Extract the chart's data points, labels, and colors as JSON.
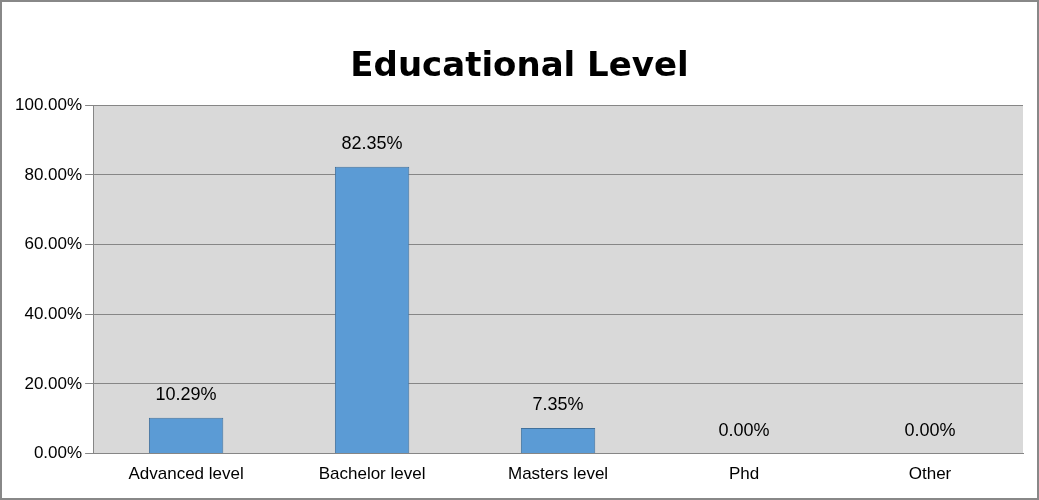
{
  "chart_data": {
    "type": "bar",
    "title": "Educational  Level",
    "categories": [
      "Advanced level",
      "Bachelor level",
      "Masters level",
      "Phd",
      "Other"
    ],
    "values": [
      10.29,
      82.35,
      7.35,
      0,
      0
    ],
    "value_labels": [
      "10.29%",
      "82.35%",
      "7.35%",
      "0.00%",
      "0.00%"
    ],
    "color": "#5b9bd5",
    "ylim": [
      0,
      100
    ],
    "yticks": [
      {
        "value": 0,
        "label": "0.00%"
      },
      {
        "value": 20,
        "label": "20.00%"
      },
      {
        "value": 40,
        "label": "40.00%"
      },
      {
        "value": 60,
        "label": "60.00%"
      },
      {
        "value": 80,
        "label": "80.00%"
      },
      {
        "value": 100,
        "label": "100.00%"
      }
    ],
    "grid": "y",
    "legend": false
  }
}
